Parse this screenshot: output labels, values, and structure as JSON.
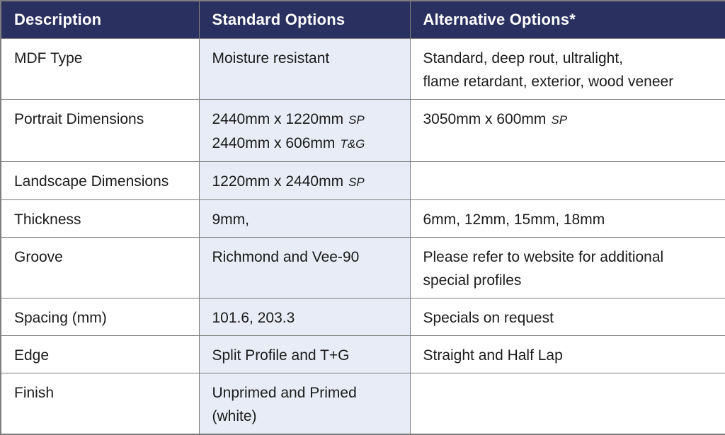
{
  "header": {
    "description": "Description",
    "standard": "Standard Options",
    "alternative": "Alternative Options*"
  },
  "rows": [
    {
      "description": "MDF Type",
      "standard": [
        {
          "text": "Moisture resistant"
        }
      ],
      "alternative": [
        {
          "text": "Standard, deep rout, ultralight,"
        },
        {
          "text": "flame retardant, exterior, wood veneer"
        }
      ]
    },
    {
      "description": "Portrait Dimensions",
      "standard": [
        {
          "text": "2440mm x 1220mm",
          "note": "SP"
        },
        {
          "text": "2440mm x 606mm",
          "note": "T&G"
        }
      ],
      "alternative": [
        {
          "text": "3050mm x 600mm",
          "note": "SP"
        }
      ]
    },
    {
      "description": "Landscape Dimensions",
      "standard": [
        {
          "text": "1220mm x 2440mm",
          "note": "SP"
        }
      ],
      "alternative": []
    },
    {
      "description": "Thickness",
      "standard": [
        {
          "text": "9mm,"
        }
      ],
      "alternative": [
        {
          "text": "6mm, 12mm, 15mm, 18mm"
        }
      ]
    },
    {
      "description": "Groove",
      "standard": [
        {
          "text": "Richmond and Vee-90"
        }
      ],
      "alternative": [
        {
          "text": "Please refer to website for additional"
        },
        {
          "text": "special profiles"
        }
      ]
    },
    {
      "description": "Spacing (mm)",
      "standard": [
        {
          "text": "101.6, 203.3"
        }
      ],
      "alternative": [
        {
          "text": "Specials on request"
        }
      ]
    },
    {
      "description": "Edge",
      "standard": [
        {
          "text": "Split Profile and T+G"
        }
      ],
      "alternative": [
        {
          "text": "Straight and Half Lap"
        }
      ]
    },
    {
      "description": "Finish",
      "standard": [
        {
          "text": "Unprimed and Primed"
        },
        {
          "text": "(white)"
        }
      ],
      "alternative": []
    }
  ],
  "colors": {
    "header_bg": "#2a3160",
    "header_text": "#ffffff",
    "standard_column_bg": "#e8ecf7",
    "grid_line": "#7e7e7e",
    "body_text": "#1b1b1b"
  }
}
